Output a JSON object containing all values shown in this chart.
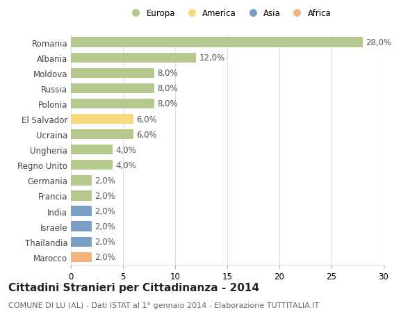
{
  "countries": [
    "Romania",
    "Albania",
    "Moldova",
    "Russia",
    "Polonia",
    "El Salvador",
    "Ucraina",
    "Ungheria",
    "Regno Unito",
    "Germania",
    "Francia",
    "India",
    "Israele",
    "Thailandia",
    "Marocco"
  ],
  "values": [
    28.0,
    12.0,
    8.0,
    8.0,
    8.0,
    6.0,
    6.0,
    4.0,
    4.0,
    2.0,
    2.0,
    2.0,
    2.0,
    2.0,
    2.0
  ],
  "continents": [
    "Europa",
    "Europa",
    "Europa",
    "Europa",
    "Europa",
    "America",
    "Europa",
    "Europa",
    "Europa",
    "Europa",
    "Europa",
    "Asia",
    "Asia",
    "Asia",
    "Africa"
  ],
  "colors": {
    "Europa": "#b5c98e",
    "America": "#f9d97c",
    "Asia": "#7b9fc4",
    "Africa": "#f3b27a"
  },
  "legend_order": [
    "Europa",
    "America",
    "Asia",
    "Africa"
  ],
  "title": "Cittadini Stranieri per Cittadinanza - 2014",
  "subtitle": "COMUNE DI LU (AL) - Dati ISTAT al 1° gennaio 2014 - Elaborazione TUTTITALIA.IT",
  "xlim": [
    0,
    30
  ],
  "xticks": [
    0,
    5,
    10,
    15,
    20,
    25,
    30
  ],
  "background_color": "#ffffff",
  "bar_height": 0.65,
  "grid_color": "#e0e0e0",
  "title_fontsize": 11,
  "subtitle_fontsize": 8,
  "tick_fontsize": 8.5,
  "label_fontsize": 8.5,
  "value_color": "#555555"
}
